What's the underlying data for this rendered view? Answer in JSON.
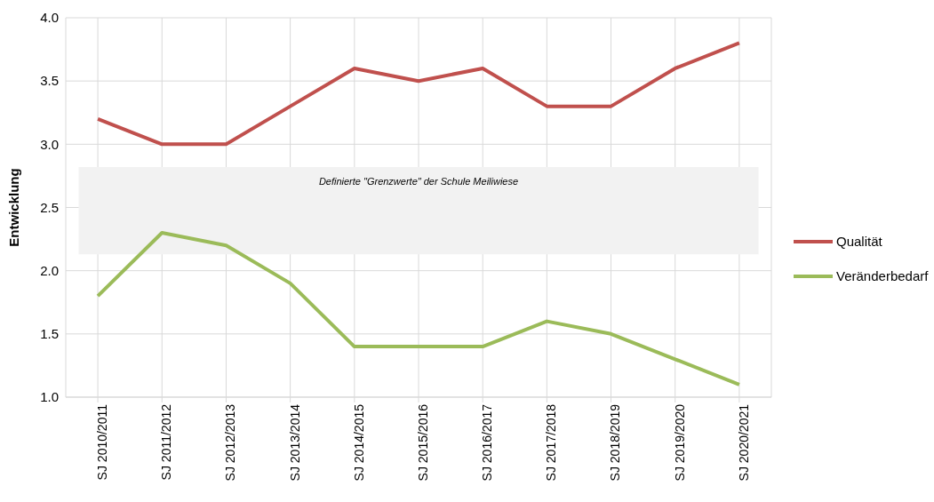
{
  "chart_data": {
    "type": "line",
    "ylabel": "Entwicklung",
    "categories": [
      "SJ 2010/2011",
      "SJ 2011/2012",
      "SJ 2012/2013",
      "SJ 2013/2014",
      "SJ 2014/2015",
      "SJ 2015/2016",
      "SJ 2016/2017",
      "SJ 2017/2018",
      "SJ 2018/2019",
      "SJ 2019/2020",
      "SJ 2020/2021"
    ],
    "series": [
      {
        "name": "Qualität",
        "color": "#c0504d",
        "values": [
          3.2,
          3.0,
          3.0,
          3.3,
          3.6,
          3.5,
          3.6,
          3.3,
          3.3,
          3.6,
          3.8
        ]
      },
      {
        "name": "Veränderbedarf",
        "color": "#9bbb59",
        "values": [
          1.8,
          2.3,
          2.2,
          1.9,
          1.4,
          1.4,
          1.4,
          1.6,
          1.5,
          1.3,
          1.1
        ]
      }
    ],
    "ylim": [
      1.0,
      4.0
    ],
    "yticks": [
      {
        "value": 1.0,
        "label": "1.0"
      },
      {
        "value": 1.5,
        "label": "1.5"
      },
      {
        "value": 2.0,
        "label": "2.0"
      },
      {
        "value": 2.5,
        "label": "2.5"
      },
      {
        "value": 3.0,
        "label": "3.0"
      },
      {
        "value": 3.5,
        "label": "3.5"
      },
      {
        "value": 4.0,
        "label": "4.0"
      }
    ],
    "bands": [
      {
        "axis": "y",
        "from": 2.13,
        "to": 2.82,
        "label": "Definierte \"Grenzwerte\" der Schule Meiliwiese",
        "color": "#f2f2f2"
      }
    ],
    "grid": true,
    "legend": "right",
    "marker": "none",
    "line_style": "solid"
  }
}
